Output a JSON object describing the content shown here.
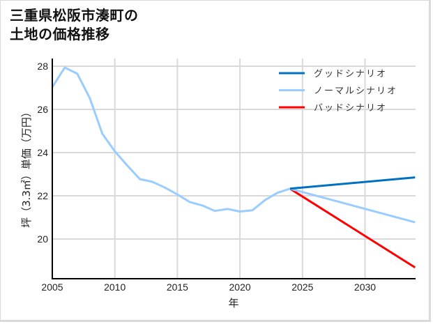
{
  "title": {
    "line1": "三重県松阪市湊町の",
    "line2": "土地の価格推移"
  },
  "chart_data": {
    "type": "line",
    "title": "三重県松阪市湊町の土地の価格推移",
    "xlabel": "年",
    "ylabel": "坪（3.3㎡）単価（万円）",
    "xlim": [
      2005,
      2034
    ],
    "ylim": [
      18.2,
      28.3
    ],
    "xticks": [
      2005,
      2010,
      2015,
      2020,
      2025,
      2030
    ],
    "yticks": [
      20,
      22,
      24,
      26,
      28
    ],
    "grid": true,
    "legend_position": "upper right",
    "historical": {
      "x": [
        2005,
        2006,
        2007,
        2008,
        2009,
        2010,
        2011,
        2012,
        2013,
        2014,
        2015,
        2016,
        2017,
        2018,
        2019,
        2020,
        2021,
        2022,
        2023,
        2024
      ],
      "values": [
        27.03,
        27.94,
        27.65,
        26.52,
        24.87,
        24.06,
        23.4,
        22.77,
        22.65,
        22.38,
        22.06,
        21.71,
        21.55,
        21.3,
        21.39,
        21.27,
        21.33,
        21.8,
        22.14,
        22.33
      ]
    },
    "series": [
      {
        "name": "グッドシナリオ",
        "color": "#0070C0",
        "x": [
          2024,
          2034
        ],
        "values": [
          22.33,
          22.85
        ]
      },
      {
        "name": "ノーマルシナリオ",
        "color": "#99CCFF",
        "x": [
          2024,
          2034
        ],
        "values": [
          22.33,
          20.77
        ]
      },
      {
        "name": "バッドシナリオ",
        "color": "#FF0000",
        "x": [
          2024,
          2034
        ],
        "values": [
          22.33,
          18.68
        ]
      }
    ]
  }
}
